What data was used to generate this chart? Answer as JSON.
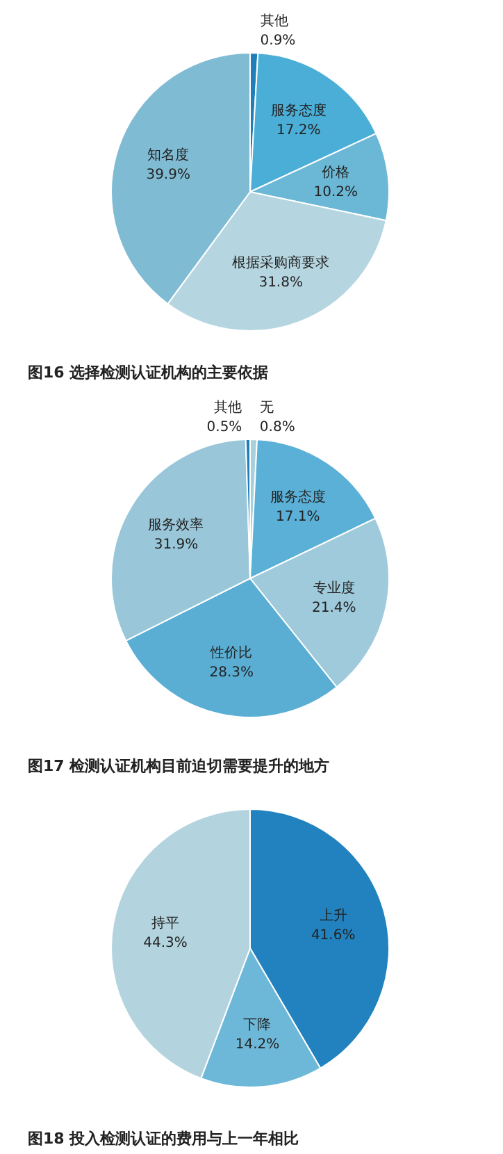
{
  "chart_data": [
    {
      "type": "pie",
      "title": "图16  选择检测认证机构的主要依据",
      "categories": [
        "其他",
        "服务态度",
        "价格",
        "根据采购商要求",
        "知名度"
      ],
      "values": [
        0.9,
        17.2,
        10.2,
        31.8,
        39.9
      ],
      "value_labels": [
        "0.9%",
        "17.2%",
        "10.2%",
        "31.8%",
        "39.9%"
      ],
      "colors": [
        "#1f7fb8",
        "#4aaed6",
        "#6bb8d6",
        "#b5d6e0",
        "#7fbcd4"
      ]
    },
    {
      "type": "pie",
      "title": "图17  检测认证机构目前迫切需要提升的地方",
      "categories": [
        "无",
        "服务态度",
        "专业度",
        "性价比",
        "服务效率",
        "其他"
      ],
      "values": [
        0.8,
        17.1,
        21.4,
        28.3,
        31.9,
        0.5
      ],
      "value_labels": [
        "0.8%",
        "17.1%",
        "21.4%",
        "28.3%",
        "31.9%",
        "0.5%"
      ],
      "colors": [
        "#a8cfdc",
        "#5ab0d6",
        "#9fcadb",
        "#5aaed4",
        "#99c6d8",
        "#1f7fb8"
      ]
    },
    {
      "type": "pie",
      "title": "图18  投入检测认证的费用与上一年相比",
      "categories": [
        "上升",
        "下降",
        "持平"
      ],
      "values": [
        41.6,
        14.2,
        44.3
      ],
      "value_labels": [
        "41.6%",
        "14.2%",
        "44.3%"
      ],
      "colors": [
        "#2182bf",
        "#6db8d8",
        "#b3d4df"
      ]
    }
  ]
}
